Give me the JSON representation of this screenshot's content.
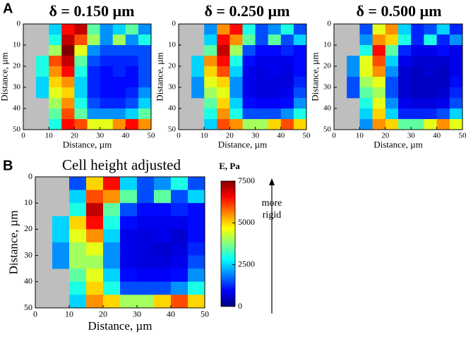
{
  "panel_labels": [
    "A",
    "B"
  ],
  "side_note": [
    "more",
    "rigid"
  ],
  "chart_data": [
    {
      "type": "heatmap",
      "title": "δ = 0.150 µm",
      "xlabel": "Distance, µm",
      "ylabel": "Distance, µm",
      "xbins": [
        0,
        5,
        10,
        15,
        20,
        25,
        30,
        35,
        40,
        45,
        50
      ],
      "ybins": [
        0,
        5,
        10,
        15,
        20,
        25,
        30,
        35,
        40,
        45,
        50
      ],
      "xlim": [
        0,
        50
      ],
      "ylim": [
        0,
        50
      ],
      "xticks": [
        0,
        10,
        20,
        30,
        40,
        50
      ],
      "yticks": [
        0,
        10,
        20,
        30,
        40,
        50
      ],
      "y_inverted": true,
      "values": [
        [
          null,
          null,
          2500,
          6500,
          7000,
          3500,
          2000,
          2500,
          3500,
          2000
        ],
        [
          null,
          null,
          3000,
          7000,
          6000,
          4000,
          2000,
          4000,
          2000,
          3000
        ],
        [
          null,
          null,
          4000,
          7500,
          4500,
          2000,
          1500,
          1500,
          1500,
          1500
        ],
        [
          null,
          3000,
          6000,
          7000,
          3500,
          1500,
          1200,
          1200,
          1200,
          1500
        ],
        [
          null,
          3000,
          5500,
          6500,
          3000,
          1200,
          1000,
          1200,
          1000,
          1500
        ],
        [
          null,
          2500,
          5000,
          5500,
          2500,
          1200,
          1000,
          1000,
          1000,
          1500
        ],
        [
          null,
          2500,
          4500,
          5000,
          2500,
          1200,
          1000,
          1000,
          1200,
          2000
        ],
        [
          null,
          null,
          4000,
          5500,
          3000,
          1500,
          1200,
          1200,
          1500,
          2500
        ],
        [
          null,
          null,
          3500,
          6000,
          3500,
          2000,
          2000,
          2000,
          2500,
          3500
        ],
        [
          null,
          null,
          3000,
          6500,
          6000,
          4500,
          4500,
          5500,
          6500,
          5500
        ]
      ]
    },
    {
      "type": "heatmap",
      "title": "δ = 0.250 µm",
      "xlabel": "Distance, µm",
      "ylabel": "Distance, µm",
      "xbins": [
        0,
        5,
        10,
        15,
        20,
        25,
        30,
        35,
        40,
        45,
        50
      ],
      "ybins": [
        0,
        5,
        10,
        15,
        20,
        25,
        30,
        35,
        40,
        45,
        50
      ],
      "xlim": [
        0,
        50
      ],
      "ylim": [
        0,
        50
      ],
      "xticks": [
        0,
        10,
        20,
        30,
        40,
        50
      ],
      "yticks": [
        0,
        10,
        20,
        30,
        40,
        50
      ],
      "y_inverted": true,
      "values": [
        [
          null,
          null,
          2000,
          5500,
          6500,
          3000,
          1500,
          2000,
          3000,
          1500
        ],
        [
          null,
          null,
          2500,
          6500,
          5500,
          3500,
          1500,
          3500,
          1500,
          2500
        ],
        [
          null,
          null,
          3500,
          7000,
          4000,
          1500,
          1000,
          1000,
          1200,
          1000
        ],
        [
          null,
          2500,
          5500,
          6500,
          3000,
          1000,
          800,
          800,
          800,
          1000
        ],
        [
          null,
          2500,
          5000,
          6000,
          2500,
          800,
          700,
          800,
          700,
          1000
        ],
        [
          null,
          2000,
          4500,
          5000,
          2000,
          800,
          700,
          700,
          700,
          1200
        ],
        [
          null,
          2000,
          4000,
          4500,
          2000,
          800,
          700,
          700,
          800,
          1500
        ],
        [
          null,
          null,
          3500,
          5000,
          2500,
          1000,
          900,
          900,
          1000,
          2000
        ],
        [
          null,
          null,
          3000,
          5500,
          3000,
          1500,
          1500,
          1500,
          2000,
          3000
        ],
        [
          null,
          null,
          2500,
          6000,
          5500,
          4000,
          4000,
          5000,
          6000,
          5000
        ]
      ]
    },
    {
      "type": "heatmap",
      "title": "δ = 0.500 µm",
      "xlabel": "Distance, µm",
      "ylabel": "Distance, µm",
      "xbins": [
        0,
        5,
        10,
        15,
        20,
        25,
        30,
        35,
        40,
        45,
        50
      ],
      "ybins": [
        0,
        5,
        10,
        15,
        20,
        25,
        30,
        35,
        40,
        45,
        50
      ],
      "xlim": [
        0,
        50
      ],
      "ylim": [
        0,
        50
      ],
      "xticks": [
        0,
        10,
        20,
        30,
        40,
        50
      ],
      "yticks": [
        0,
        10,
        20,
        30,
        40,
        50
      ],
      "y_inverted": true,
      "values": [
        [
          null,
          null,
          1500,
          4500,
          5500,
          2500,
          1200,
          1500,
          2500,
          1200
        ],
        [
          null,
          null,
          2000,
          5500,
          5000,
          3000,
          1200,
          3000,
          1200,
          2000
        ],
        [
          null,
          null,
          3000,
          6500,
          3500,
          1200,
          800,
          800,
          1000,
          800
        ],
        [
          null,
          2000,
          4500,
          6000,
          2500,
          800,
          600,
          600,
          600,
          800
        ],
        [
          null,
          2000,
          4500,
          5500,
          2000,
          600,
          500,
          600,
          500,
          800
        ],
        [
          null,
          1500,
          4000,
          4500,
          1500,
          600,
          500,
          500,
          500,
          1000
        ],
        [
          null,
          1500,
          3500,
          4000,
          1500,
          600,
          500,
          500,
          600,
          1200
        ],
        [
          null,
          null,
          3000,
          4500,
          2000,
          800,
          700,
          700,
          800,
          1500
        ],
        [
          null,
          null,
          2500,
          5000,
          2500,
          1200,
          1200,
          1200,
          1500,
          2500
        ],
        [
          null,
          null,
          2000,
          5500,
          5000,
          3500,
          3500,
          4500,
          5500,
          4500
        ]
      ]
    },
    {
      "type": "heatmap",
      "title": "Cell height adjusted",
      "xlabel": "Distance, µm",
      "ylabel": "Distance, µm",
      "xbins": [
        0,
        5,
        10,
        15,
        20,
        25,
        30,
        35,
        40,
        45,
        50
      ],
      "ybins": [
        0,
        5,
        10,
        15,
        20,
        25,
        30,
        35,
        40,
        45,
        50
      ],
      "xlim": [
        0,
        50
      ],
      "ylim": [
        0,
        50
      ],
      "xticks": [
        0,
        10,
        20,
        30,
        40,
        50
      ],
      "yticks": [
        0,
        10,
        20,
        30,
        40,
        50
      ],
      "y_inverted": true,
      "values": [
        [
          null,
          null,
          1500,
          5000,
          6500,
          2500,
          1500,
          2000,
          3000,
          1500
        ],
        [
          null,
          null,
          2500,
          6000,
          5500,
          3500,
          1500,
          3500,
          1500,
          2500
        ],
        [
          null,
          null,
          3000,
          7000,
          3500,
          1500,
          1000,
          1000,
          1200,
          1000
        ],
        [
          null,
          2500,
          5000,
          6500,
          3000,
          1000,
          800,
          800,
          800,
          1000
        ],
        [
          null,
          2500,
          4500,
          5500,
          2500,
          800,
          700,
          800,
          600,
          1000
        ],
        [
          null,
          2000,
          4000,
          4500,
          2000,
          800,
          700,
          600,
          700,
          1200
        ],
        [
          null,
          2000,
          4000,
          4000,
          2000,
          800,
          700,
          700,
          800,
          1500
        ],
        [
          null,
          null,
          3500,
          4500,
          2500,
          1000,
          900,
          900,
          1000,
          2000
        ],
        [
          null,
          null,
          3000,
          5000,
          3000,
          1500,
          1500,
          1500,
          2000,
          3000
        ],
        [
          null,
          null,
          2500,
          5500,
          5000,
          4000,
          4000,
          5000,
          6000,
          5000
        ]
      ],
      "colorbar": {
        "label": "E, Pa",
        "colormap": "jet",
        "clim": [
          0,
          7500
        ],
        "cticks": [
          0,
          2500,
          5000,
          7500
        ],
        "nan_color": "#bebebe"
      }
    }
  ]
}
